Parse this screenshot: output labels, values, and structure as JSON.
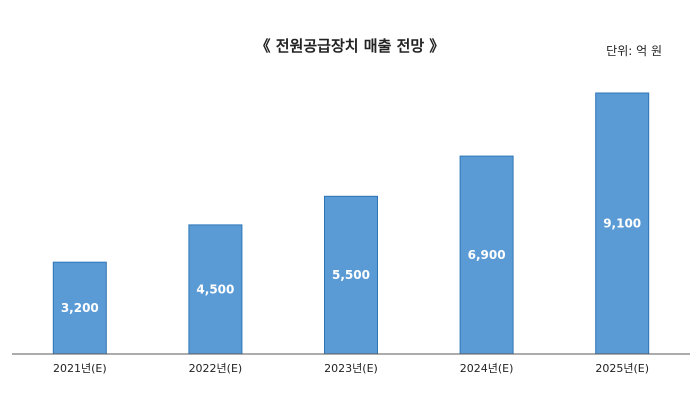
{
  "chart_data": {
    "type": "bar",
    "title": "《 전원공급장치 매출 전망 》",
    "unit_label": "단위: 억 원",
    "categories": [
      "2021년(E)",
      "2022년(E)",
      "2023년(E)",
      "2024년(E)",
      "2025년(E)"
    ],
    "values": [
      3200,
      4500,
      5500,
      6900,
      9100
    ],
    "value_labels": [
      "3,200",
      "4,500",
      "5,500",
      "6,900",
      "9,100"
    ],
    "ylim": [
      0,
      9100
    ],
    "grid": false,
    "legend": "none",
    "colors": {
      "bar": "#5b9bd5",
      "bar_stroke": "#2e75b6",
      "label": "#ffffff",
      "axis": "#595959"
    }
  }
}
